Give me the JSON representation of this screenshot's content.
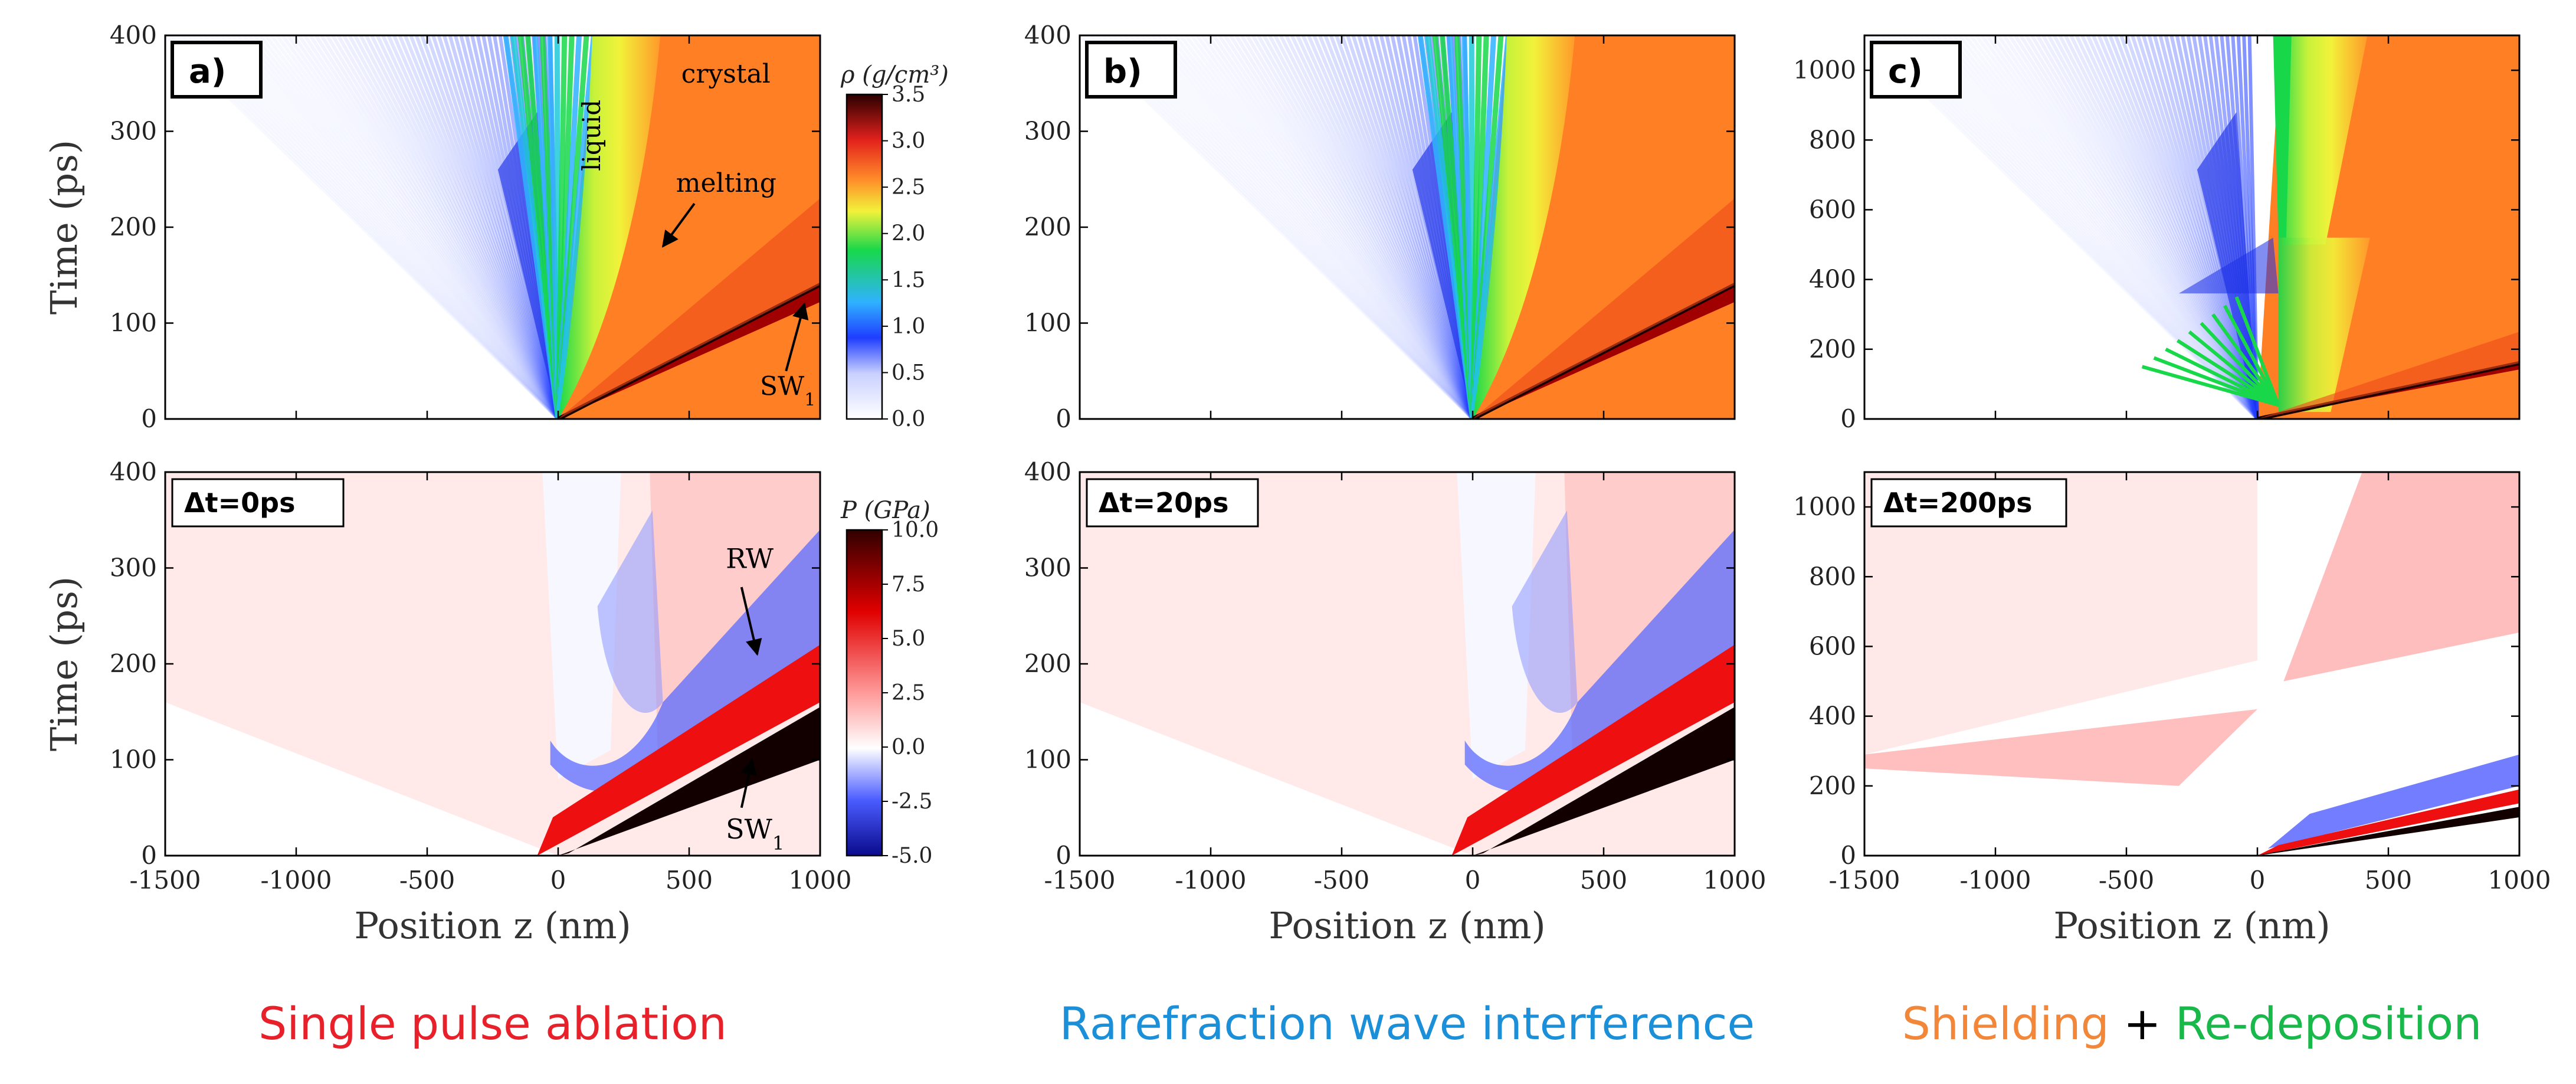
{
  "colors": {
    "density_scale": [
      "#ffffff",
      "#1f3dff",
      "#2fb2ff",
      "#18d84a",
      "#f2f23a",
      "#ff8a2a",
      "#e2211c",
      "#2a0000"
    ],
    "pressure_scale": [
      "#0a0a8c",
      "#4a5cff",
      "#ffffff",
      "#ff9a9a",
      "#e00000",
      "#300000"
    ],
    "red": "#e8202a",
    "blue": "#1b8fd8",
    "orange": "#f2873a",
    "green": "#19b84a"
  },
  "panels": [
    {
      "label": "a)",
      "delay_label": "Δt=0ps",
      "ymax_top": 400,
      "ymax_bottom": 400,
      "yticks_top": [
        "0",
        "100",
        "200",
        "300",
        "400"
      ],
      "yticks_bottom": [
        "0",
        "100",
        "200",
        "300",
        "400"
      ],
      "caption_parts": [
        {
          "text": "Single pulse ablation",
          "color_key": "red"
        }
      ]
    },
    {
      "label": "b)",
      "delay_label": "Δt=20ps",
      "ymax_top": 400,
      "ymax_bottom": 400,
      "yticks_top": [
        "0",
        "100",
        "200",
        "300",
        "400"
      ],
      "yticks_bottom": [
        "0",
        "100",
        "200",
        "300",
        "400"
      ],
      "caption_parts": [
        {
          "text": "Rarefraction wave interference",
          "color_key": "blue"
        }
      ]
    },
    {
      "label": "c)",
      "delay_label": "Δt=200ps",
      "ymax_top": 1100,
      "ymax_bottom": 1100,
      "yticks_top": [
        "0",
        "200",
        "400",
        "600",
        "800",
        "1000"
      ],
      "yticks_bottom": [
        "0",
        "200",
        "400",
        "600",
        "800",
        "1000"
      ],
      "caption_parts": [
        {
          "text": "Shielding",
          "color_key": "orange"
        },
        {
          "text": " + ",
          "color_key": "black"
        },
        {
          "text": "Re-deposition",
          "color_key": "green"
        }
      ]
    }
  ],
  "axes": {
    "xlabel": "Position z (nm)",
    "ylabel": "Time (ps)",
    "xticks": [
      "-1500",
      "-1000",
      "-500",
      "0",
      "500",
      "1000"
    ],
    "xrange": [
      -1500,
      1000
    ]
  },
  "colorbar_density": {
    "label": "ρ (g/cm³)",
    "ticks": [
      "0.0",
      "0.5",
      "1.0",
      "1.5",
      "2.0",
      "2.5",
      "3.0",
      "3.5"
    ],
    "range": [
      0,
      3.5
    ]
  },
  "colorbar_pressure": {
    "label": "P (GPa)",
    "ticks": [
      "-5.0",
      "-2.5",
      "0.0",
      "2.5",
      "5.0",
      "7.5",
      "10.0"
    ],
    "range": [
      -5,
      10
    ]
  },
  "annotations_top": {
    "crystal": "crystal",
    "liquid": "liquid",
    "melting": "melting",
    "sw": "SW",
    "sw_sub": "1"
  },
  "annotations_bottom": {
    "rw": "RW",
    "sw": "SW",
    "sw_sub": "1"
  }
}
